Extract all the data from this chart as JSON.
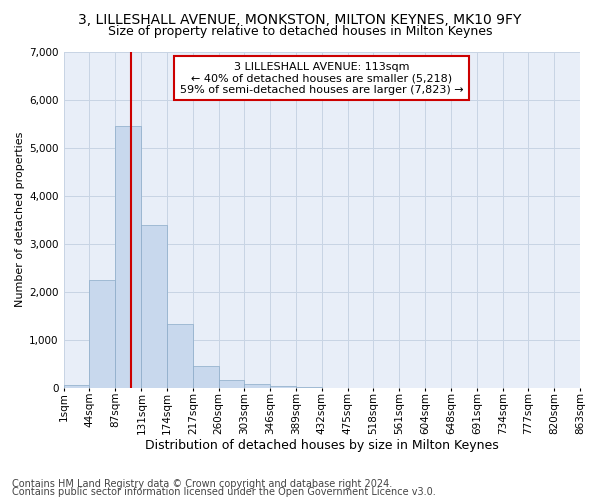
{
  "title": "3, LILLESHALL AVENUE, MONKSTON, MILTON KEYNES, MK10 9FY",
  "subtitle": "Size of property relative to detached houses in Milton Keynes",
  "xlabel": "Distribution of detached houses by size in Milton Keynes",
  "ylabel": "Number of detached properties",
  "footnote1": "Contains HM Land Registry data © Crown copyright and database right 2024.",
  "footnote2": "Contains public sector information licensed under the Open Government Licence v3.0.",
  "annotation_line1": "3 LILLESHALL AVENUE: 113sqm",
  "annotation_line2": "← 40% of detached houses are smaller (5,218)",
  "annotation_line3": "59% of semi-detached houses are larger (7,823) →",
  "bin_starts": [
    1,
    44,
    87,
    131,
    174,
    217,
    260,
    303,
    346,
    389,
    432,
    475,
    518,
    561,
    604,
    648,
    691,
    734,
    777,
    820
  ],
  "bin_labels": [
    "1sqm",
    "44sqm",
    "87sqm",
    "131sqm",
    "174sqm",
    "217sqm",
    "260sqm",
    "303sqm",
    "346sqm",
    "389sqm",
    "432sqm",
    "475sqm",
    "518sqm",
    "561sqm",
    "604sqm",
    "648sqm",
    "691sqm",
    "734sqm",
    "777sqm",
    "820sqm",
    "863sqm"
  ],
  "bar_heights": [
    55,
    2250,
    5450,
    3380,
    1330,
    450,
    165,
    80,
    30,
    5,
    2,
    1,
    0,
    0,
    0,
    0,
    0,
    0,
    0,
    0
  ],
  "bar_color": "#c8d8ed",
  "bar_edge_color": "#8aaac8",
  "vline_x": 113,
  "vline_color": "#cc0000",
  "ylim": [
    0,
    7000
  ],
  "yticks": [
    0,
    1000,
    2000,
    3000,
    4000,
    5000,
    6000,
    7000
  ],
  "grid_color": "#c8d4e4",
  "background_color": "#e8eef8",
  "annotation_box_color": "#ffffff",
  "annotation_box_edge": "#cc0000",
  "title_fontsize": 10,
  "subtitle_fontsize": 9,
  "xlabel_fontsize": 9,
  "ylabel_fontsize": 8,
  "tick_fontsize": 7.5,
  "annotation_fontsize": 8,
  "footnote_fontsize": 7
}
